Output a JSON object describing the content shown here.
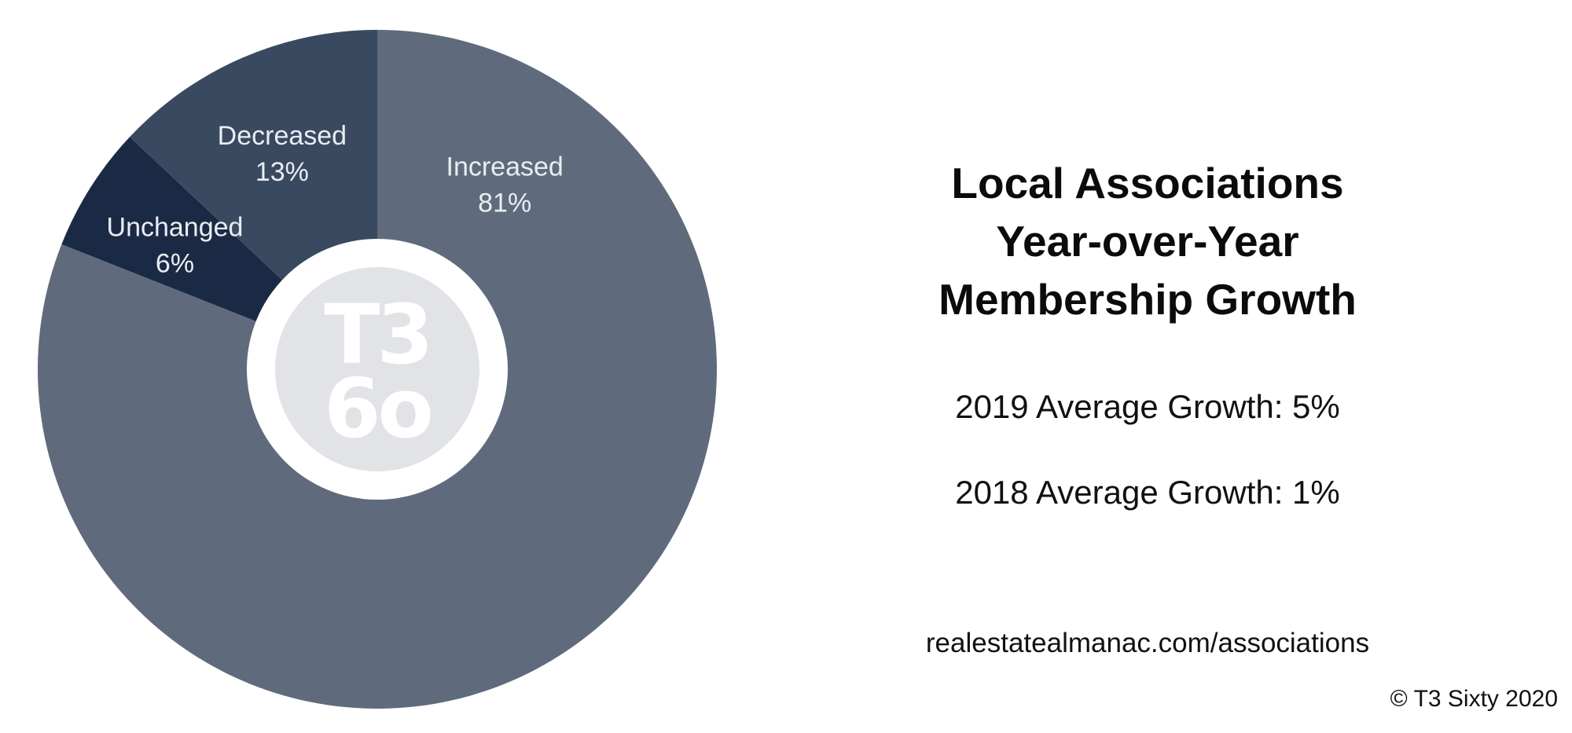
{
  "chart_data": {
    "type": "pie",
    "categories": [
      "Increased",
      "Unchanged",
      "Decreased"
    ],
    "values": [
      81,
      6,
      13
    ],
    "value_labels": [
      "81%",
      "6%",
      "13%"
    ],
    "colors": [
      "#5f6b7c",
      "#1b2a44",
      "#394960"
    ],
    "donut": true,
    "center_logo": {
      "name": "t3-sixty-logo",
      "text_top": "T3",
      "text_bottom": "6o"
    }
  },
  "panel": {
    "title_lines": [
      "Local Associations",
      "Year-over-Year",
      "Membership Growth"
    ],
    "stats": [
      "2019 Average Growth: 5%",
      "2018 Average Growth: 1%"
    ],
    "url": "realestatealmanac.com/associations",
    "copyright": "© T3 Sixty 2020"
  }
}
